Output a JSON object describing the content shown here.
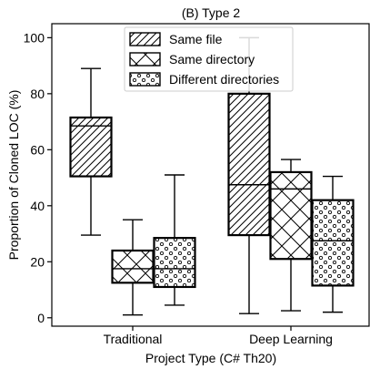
{
  "chart_data": {
    "type": "box",
    "title": "(B) Type 2",
    "xlabel": "Project Type (C# Th20)",
    "ylabel": "Proportion of Cloned LOC (%)",
    "ylim": [
      -3,
      105
    ],
    "yticks": [
      0,
      20,
      40,
      60,
      80,
      100
    ],
    "categories": [
      "Traditional",
      "Deep Learning"
    ],
    "grid": false,
    "legend_position": "top-center",
    "series": [
      {
        "name": "Same file",
        "hatch": "diagonal",
        "boxes": [
          {
            "category": "Traditional",
            "whisker_low": 29.5,
            "q1": 50.5,
            "median": 68.5,
            "q3": 71.5,
            "whisker_high": 89
          },
          {
            "category": "Deep Learning",
            "whisker_low": 1.5,
            "q1": 29.5,
            "median": 47.5,
            "q3": 80,
            "whisker_high": 100
          }
        ]
      },
      {
        "name": "Same directory",
        "hatch": "cross",
        "boxes": [
          {
            "category": "Traditional",
            "whisker_low": 1,
            "q1": 12.5,
            "median": 17.5,
            "q3": 24,
            "whisker_high": 35
          },
          {
            "category": "Deep Learning",
            "whisker_low": 2.5,
            "q1": 21,
            "median": 46,
            "q3": 52,
            "whisker_high": 56.5
          }
        ]
      },
      {
        "name": "Different directories",
        "hatch": "dots",
        "boxes": [
          {
            "category": "Traditional",
            "whisker_low": 4.5,
            "q1": 11,
            "median": 17.5,
            "q3": 28.5,
            "whisker_high": 51
          },
          {
            "category": "Deep Learning",
            "whisker_low": 2,
            "q1": 11.5,
            "median": 27.5,
            "q3": 42,
            "whisker_high": 50.5
          }
        ]
      }
    ]
  }
}
